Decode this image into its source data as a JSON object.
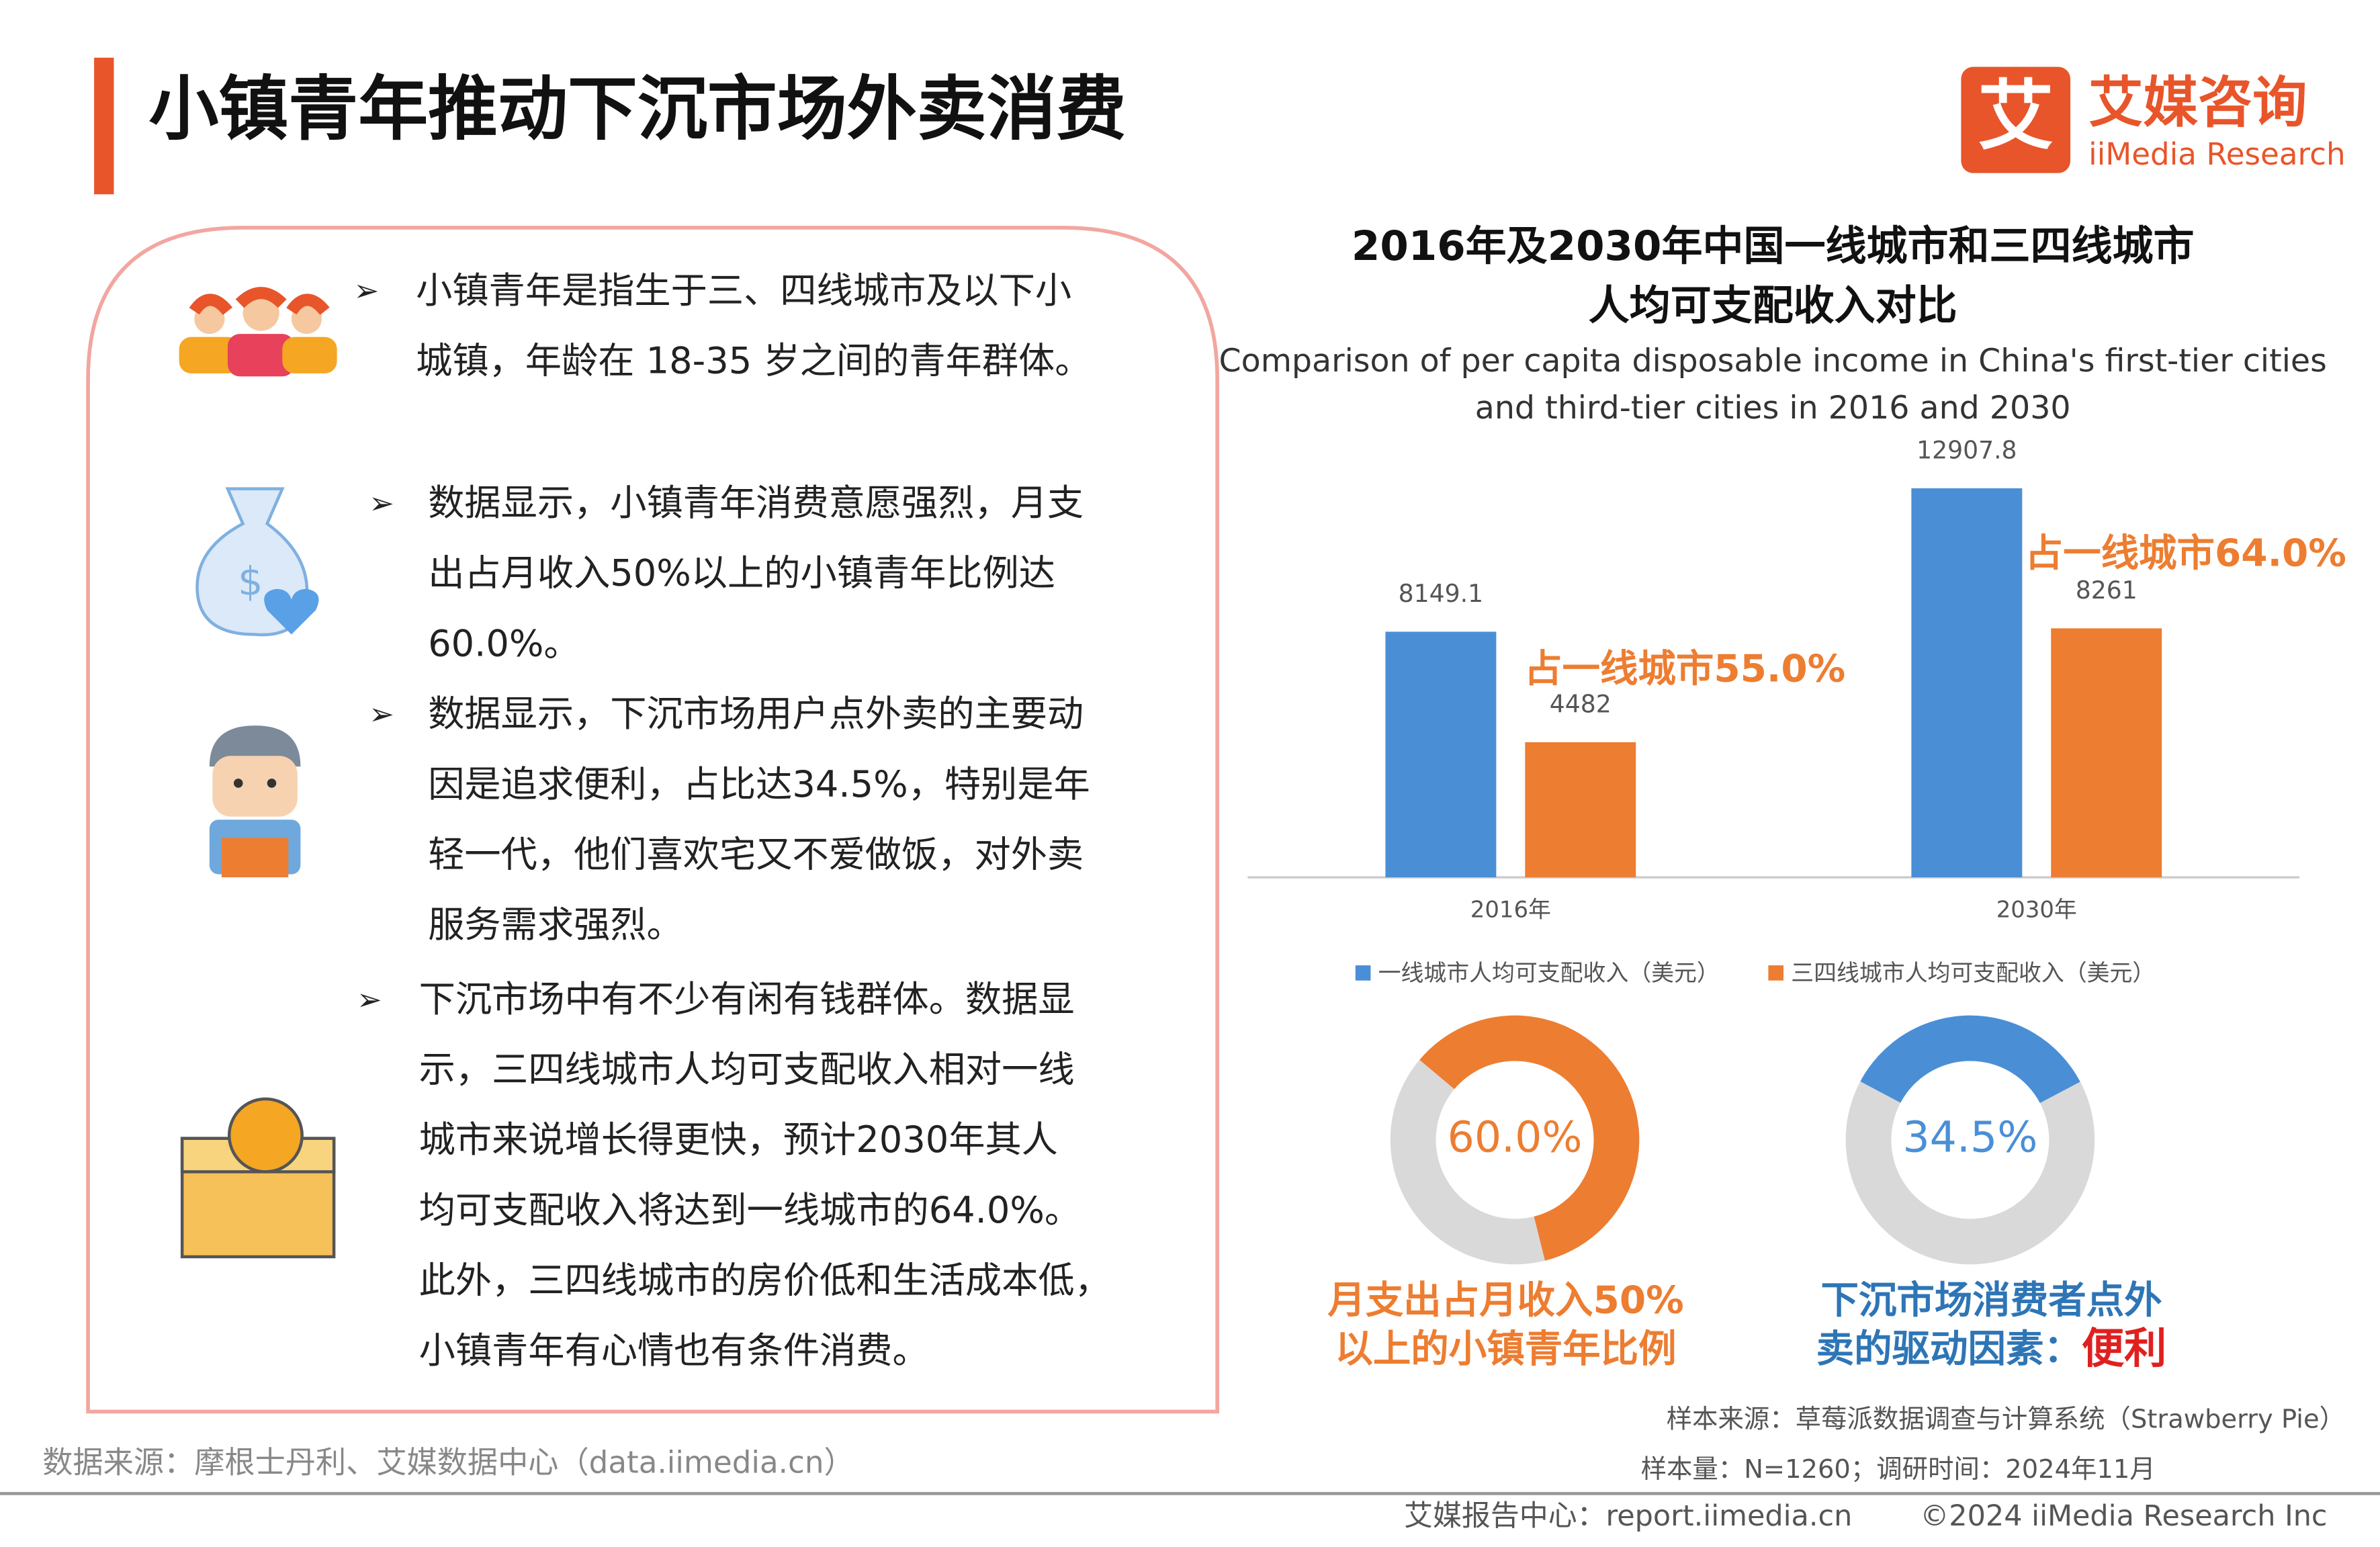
{
  "header": {
    "title": "小镇青年推动下沉市场外卖消费",
    "logo_mark": "艾",
    "logo_name": "艾媒咨询",
    "logo_en": "iiMedia Research"
  },
  "marker": "➢",
  "bullets": [
    [
      "小镇青年是指生于三、四线城市及以下小",
      "城镇，年龄在 18-35 岁之间的青年群体。"
    ],
    [
      "数据显示，小镇青年消费意愿强烈，月支",
      "出占月收入50%以上的小镇青年比例达",
      "60.0%。"
    ],
    [
      "数据显示，下沉市场用户点外卖的主要动",
      "因是追求便利，占比达34.5%，特别是年",
      "轻一代，他们喜欢宅又不爱做饭，对外卖",
      "服务需求强烈。"
    ],
    [
      "下沉市场中有不少有闲有钱群体。数据显",
      "示，三四线城市人均可支配收入相对一线",
      "城市来说增长得更快，预计2030年其人",
      "均可支配收入将达到一线城市的64.0%。",
      "此外，三四线城市的房价低和生活成本低，",
      "小镇青年有心情也有条件消费。"
    ]
  ],
  "chart_data": [
    {
      "type": "bar",
      "title": [
        "2016年及2030年中国一线城市和三四线城市",
        "人均可支配收入对比"
      ],
      "subtitle": [
        "Comparison of per capita disposable income in China's first-tier cities",
        "and third-tier cities in 2016 and 2030"
      ],
      "categories": [
        "2016年",
        "2030年"
      ],
      "series": [
        {
          "name": "一线城市人均可支配收入（美元）",
          "color": "#4a8fd6",
          "values": [
            8149.1,
            12907.8
          ]
        },
        {
          "name": "三四线城市人均可支配收入（美元）",
          "color": "#ed7d31",
          "values": [
            4482,
            8261
          ]
        }
      ],
      "ylim": [
        0,
        14000
      ],
      "annotations": [
        "占一线城市55.0%",
        "占一线城市64.0%"
      ]
    },
    {
      "type": "pie",
      "values": [
        60.0,
        40.0
      ],
      "value_labels": [
        "60.0%",
        null
      ],
      "colors": [
        "#ed7d31",
        "#d9d9d9"
      ],
      "caption": [
        "月支出占月收入50%",
        "以上的小镇青年比例"
      ],
      "caption_color": "#ed7d31"
    },
    {
      "type": "pie",
      "values": [
        34.5,
        65.5
      ],
      "value_labels": [
        "34.5%",
        null
      ],
      "colors": [
        "#4a8fd6",
        "#d9d9d9"
      ],
      "caption": [
        "下沉市场消费者点外",
        "卖的驱动因素："
      ],
      "highlight": "便利",
      "caption_color": "#2e75b6"
    }
  ],
  "sources": {
    "left": "数据来源：摩根士丹利、艾媒数据中心（data.iimedia.cn）",
    "sample_source": "样本来源：草莓派数据调查与计算系统（Strawberry Pie）",
    "sample_size": "样本量：N=1260；调研时间：2024年11月"
  },
  "footer": {
    "site": "艾媒报告中心：report.iimedia.cn",
    "copyright": "©2024  iiMedia Research  Inc"
  }
}
